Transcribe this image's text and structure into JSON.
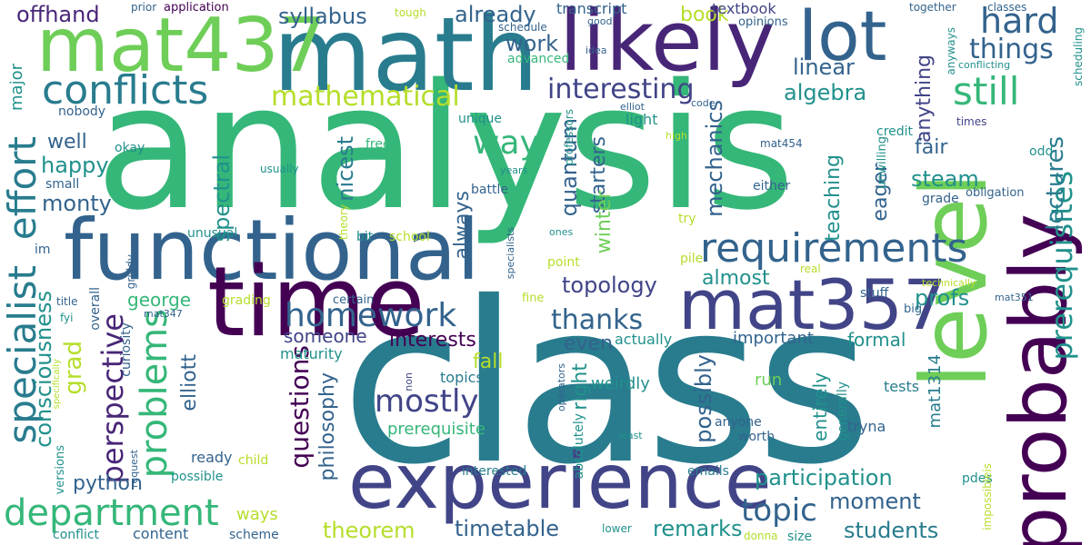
{
  "palette": {
    "dark_purple": "#440154",
    "indigo": "#482677",
    "blue_violet": "#414487",
    "slate_blue": "#33638d",
    "teal_blue": "#287c8e",
    "teal": "#21918c",
    "sea_green": "#20a386",
    "green": "#35b779",
    "light_green": "#6ece58",
    "lime": "#b5de2b",
    "yellow": "#fde725"
  },
  "words": {
    "analysis": "analysis",
    "class": "class",
    "functional": "functional",
    "math": "math",
    "mat437": "mat437",
    "likely": "likely",
    "lot": "lot",
    "time": "time",
    "level": "level",
    "probably": "probably",
    "experience": "experience",
    "mat357": "mat357",
    "requirements": "requirements",
    "specialist": "specialist",
    "conflicts": "conflicts",
    "department": "department",
    "still": "still",
    "hard": "hard",
    "things": "things",
    "prerequisites": "prerequisites",
    "homework": "homework",
    "mathematical": "mathematical",
    "interesting": "interesting",
    "way": "way",
    "already": "already",
    "syllabus": "syllabus",
    "offhand": "offhand",
    "problems": "problems",
    "effort": "effort",
    "consciousness": "consciousness",
    "perspective": "perspective",
    "questions": "questions",
    "mostly": "mostly",
    "thanks": "thanks",
    "topic": "topic",
    "topology": "topology",
    "participation": "participation",
    "students": "students",
    "timetable": "timetable",
    "theorem": "theorem",
    "remarks": "remarks",
    "moment": "moment",
    "lectures": "lectures",
    "steam": "steam",
    "profs": "profs",
    "algebra": "algebra",
    "linear": "linear",
    "book": "book",
    "work": "work",
    "textbook": "textbook",
    "transcript": "transcript",
    "happy": "happy",
    "monty": "monty",
    "well": "well",
    "nicest": "nicest",
    "spectral": "spectral",
    "george": "george",
    "grad": "grad",
    "python": "python",
    "elliott": "elliott",
    "philosophy": "philosophy",
    "interests": "interests",
    "someone": "someone",
    "fall": "fall",
    "even": "even",
    "almost": "almost",
    "mechanics": "mechanics",
    "quantum": "quantum",
    "starters": "starters",
    "always": "always",
    "possibly": "possibly",
    "winter": "winter",
    "right": "right",
    "teaching": "teaching",
    "eager": "eager",
    "fair": "fair",
    "anything": "anything",
    "formal": "formal",
    "entirely": "entirely",
    "mat1314": "mat1314",
    "important": "important",
    "actually": "actually",
    "weirdly": "weirdly",
    "topics": "topics",
    "prerequisite": "prerequisite",
    "ways": "ways",
    "run": "run",
    "tests": "tests",
    "tryna": "tryna",
    "anyone": "anyone",
    "worth": "worth",
    "generally": "generally",
    "emails": "emails",
    "interested": "interested",
    "ready": "ready",
    "child": "child",
    "possible": "possible",
    "content": "content",
    "scheme": "scheme",
    "conflict": "conflict",
    "versions": "versions",
    "lower": "lower",
    "donna": "donna",
    "size": "size",
    "pdes": "pdes",
    "impossibleis": "impossibleis",
    "major": "major",
    "nobody": "nobody",
    "small": "small",
    "im": "im",
    "unusual": "unusual",
    "okay": "okay",
    "free": "free",
    "unique": "unique",
    "advanced": "advanced",
    "battle": "battle",
    "years": "years",
    "usually": "usually",
    "credit": "credit",
    "light": "light",
    "code": "code",
    "elliot": "elliot",
    "high": "high",
    "mat454": "mat454",
    "either": "either",
    "unwilling": "unwilling",
    "grade": "grade",
    "obligation": "obligation",
    "odd": "odd",
    "times": "times",
    "try": "try",
    "pile": "pile",
    "point": "point",
    "real": "real",
    "stuff": "stuff",
    "technically": "technically",
    "mat351": "mat351",
    "big": "big",
    "certain": "certain",
    "fine": "fine",
    "grading": "grading",
    "title": "title",
    "mat347": "mat347",
    "fyi": "fyi",
    "overall": "overall",
    "maturity": "maturity",
    "curiosity": "curiosity",
    "griddy": "griddy",
    "theory": "theory",
    "specialists": "specialists",
    "bit": "bit",
    "school": "school",
    "ones": "ones",
    "absolutely": "absolutely",
    "operators": "operators",
    "non": "non",
    "least": "least",
    "request": "request",
    "specifically": "specifically",
    "prior": "prior",
    "application": "application",
    "tough": "tough",
    "good": "good",
    "schedule": "schedule",
    "idea": "idea",
    "opinions": "opinions",
    "together": "together",
    "classes": "classes",
    "anyways": "anyways",
    "conflicting": "conflicting",
    "scheduling": "scheduling",
    "professors": "professors"
  }
}
